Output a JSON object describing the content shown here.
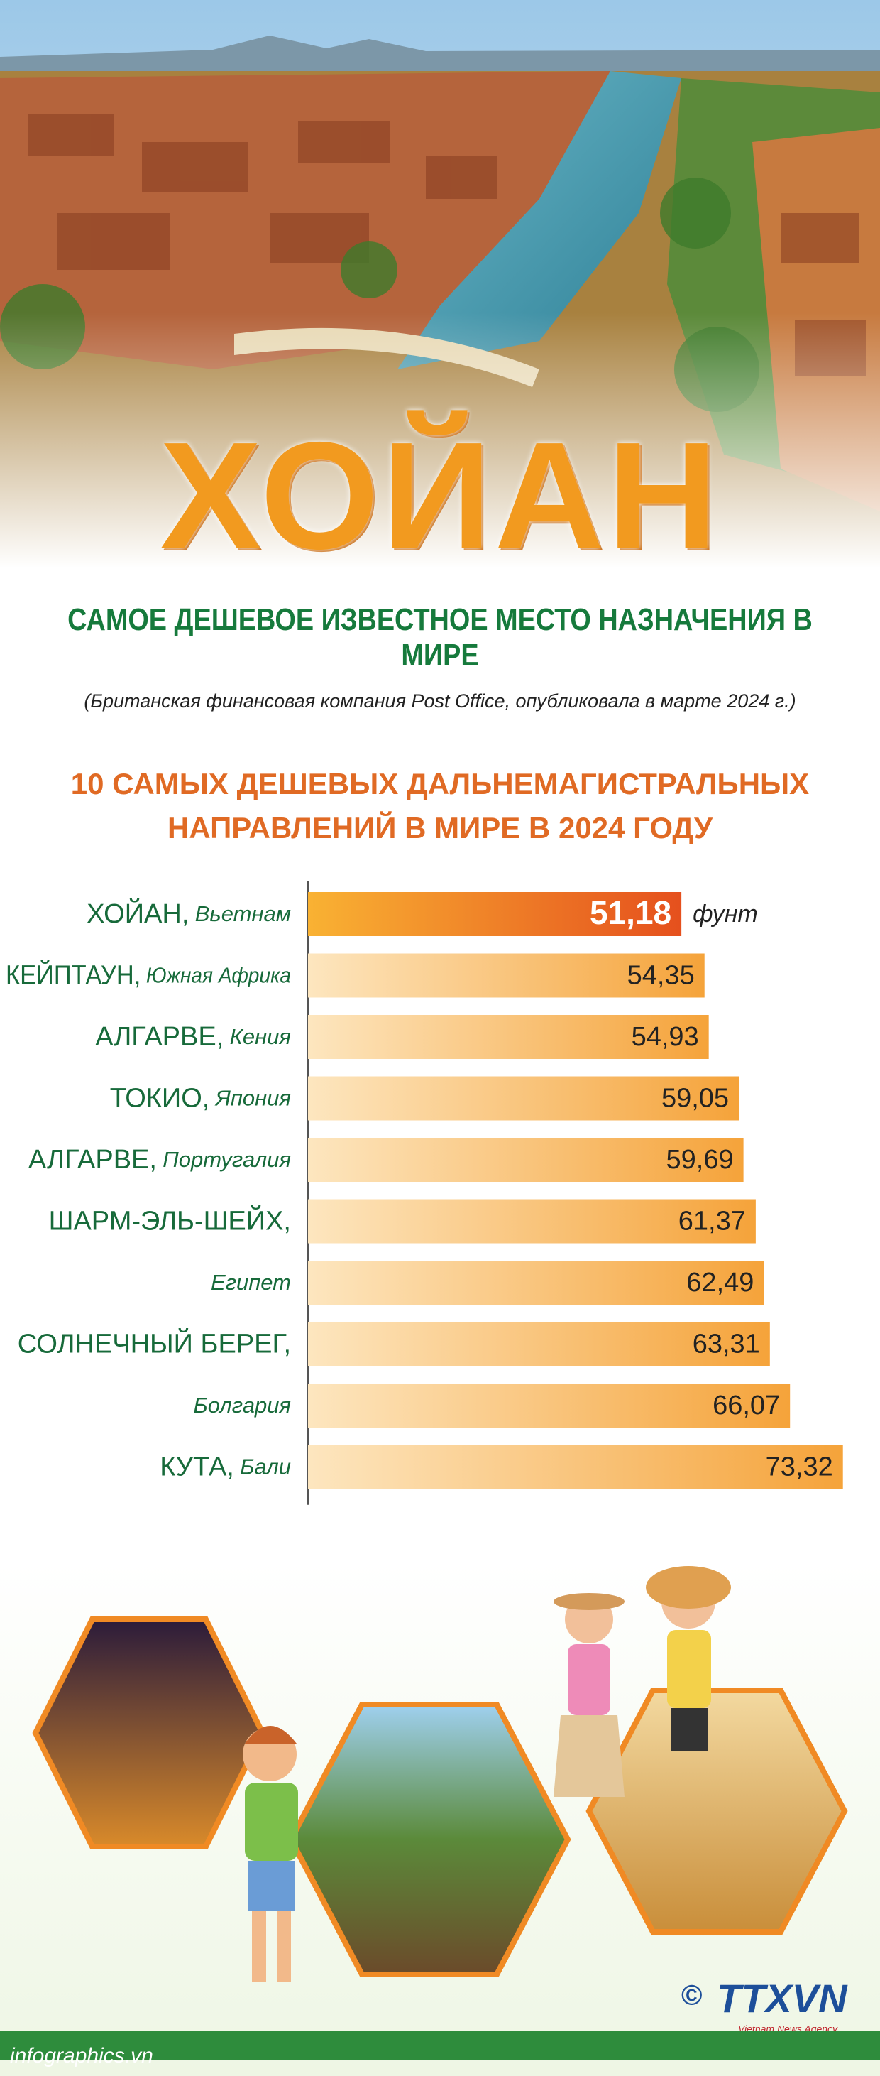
{
  "header": {
    "title": "ХОЙАН",
    "subtitle": "САМОЕ ДЕШЕВОЕ ИЗВЕСТНОЕ МЕСТО НАЗНАЧЕНИЯ В МИРЕ",
    "note": "(Британская финансовая компания Post Office, опубликовала в марте 2024 г.)"
  },
  "chart_data": {
    "type": "bar",
    "orientation": "horizontal",
    "title_lines": [
      "10 САМЫХ ДЕШЕВЫХ ДАЛЬНЕМАГИСТРАЛЬНЫХ",
      "НАПРАВЛЕНИЙ В МИРЕ В 2024 ГОДУ"
    ],
    "unit": "фунт",
    "categories": [
      {
        "name": "ХОЙАН,",
        "country": "Вьетнам"
      },
      {
        "name": "КЕЙПТАУН,",
        "country": "Южная Африка"
      },
      {
        "name": "АЛГАРВЕ,",
        "country": "Кения"
      },
      {
        "name": "ТОКИО,",
        "country": "Япония"
      },
      {
        "name": "АЛГАРВЕ,",
        "country": "Португалия"
      },
      {
        "name": "ШАРМ-ЭЛЬ-ШЕЙХ,"
      },
      {
        "country": "Египет"
      },
      {
        "name": "СОЛНЕЧНЫЙ БЕРЕГ,"
      },
      {
        "country": "Болгария"
      },
      {
        "name": "КУТА,",
        "country": "Бали"
      }
    ],
    "values": [
      51.18,
      54.35,
      54.93,
      59.05,
      59.69,
      61.37,
      62.49,
      63.31,
      66.07,
      73.32
    ],
    "value_labels": [
      "51,18",
      "54,35",
      "54,93",
      "59,05",
      "59,69",
      "61,37",
      "62,49",
      "63,31",
      "66,07",
      "73,32"
    ],
    "highlight_colors": [
      "#f9b233",
      "#e5501d"
    ],
    "colors": [
      "#fde6bf",
      "#f5a33a"
    ]
  },
  "footer": {
    "source": "infographics.vn",
    "copyright": "©",
    "logo": "TTXVN",
    "agency": "Vietnam News Agency"
  }
}
